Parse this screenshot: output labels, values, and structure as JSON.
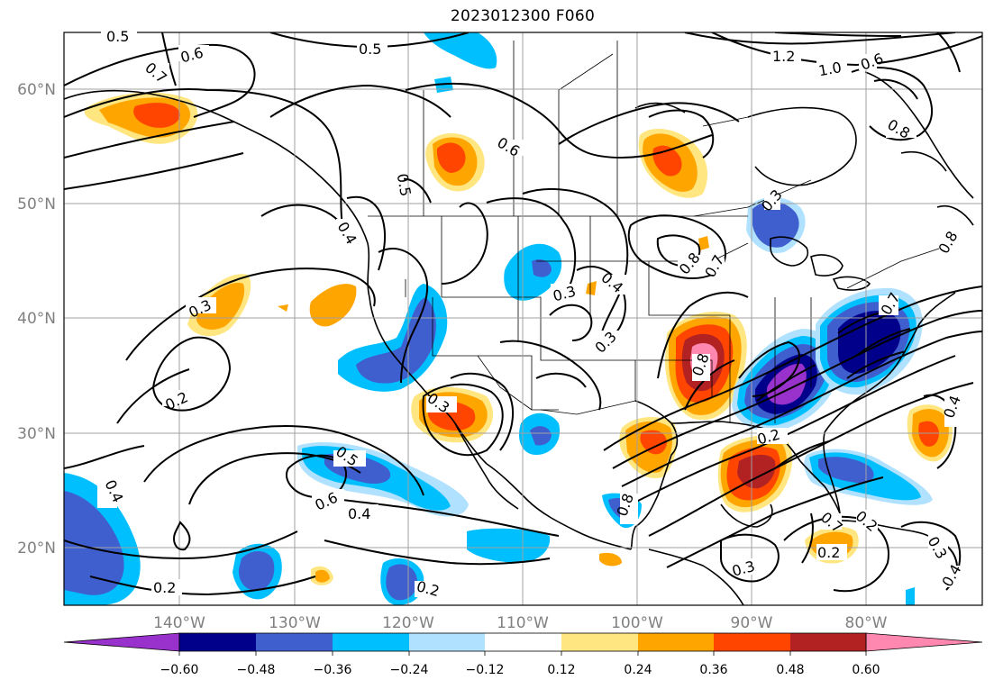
{
  "title": "2023012300 F060",
  "map": {
    "lat_labels": [
      "60°N",
      "50°N",
      "40°N",
      "30°N",
      "20°N"
    ],
    "lon_labels": [
      "140°W",
      "130°W",
      "120°W",
      "110°W",
      "100°W",
      "90°W",
      "80°W"
    ],
    "contour_labels": [
      "0.5",
      "0.6",
      "0.7",
      "0.5",
      "1.2",
      "1.0",
      "0.6",
      "0.8",
      "0.6",
      "0.5",
      "0.4",
      "0.3",
      "0.4",
      "0.3",
      "0.8",
      "0.7",
      "0.3",
      "0.2",
      "0.3",
      "0.5",
      "0.6",
      "0.4",
      "0.4",
      "0.2",
      "0.2",
      "0.8",
      "0.8",
      "0.7",
      "0.3",
      "0.2",
      "0.4",
      "0.3",
      "0.2",
      "0.3",
      "0.4",
      "0.2",
      "0.8",
      "0.7"
    ]
  },
  "colorbar": {
    "ticks": [
      "−0.60",
      "−0.48",
      "−0.36",
      "−0.24",
      "−0.12",
      "0.12",
      "0.24",
      "0.36",
      "0.48",
      "0.60"
    ],
    "colors": [
      "#9932cc",
      "#00008b",
      "#3f5fcf",
      "#00bfff",
      "#b0e2ff",
      "#ffffff",
      "#ffe680",
      "#ffa500",
      "#ff4500",
      "#b22222",
      "#ff88b0"
    ]
  }
}
